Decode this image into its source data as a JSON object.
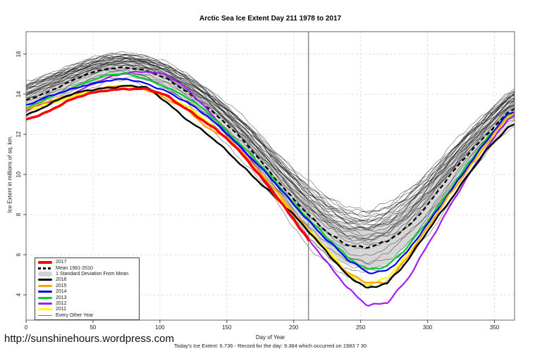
{
  "title": "Arctic Sea Ice Extent Day 211 1978 to 2017",
  "footer": {
    "url": "http://sunshinehours.wordpress.com",
    "status_line": "Today's Ice Extent: 6.736  - Record for the day: 9.364 which occurred on 1983 7 30"
  },
  "chart_data": {
    "type": "line",
    "title": "Arctic Sea Ice Extent Day 211 1978 to 2017",
    "xlabel": "Day of Year",
    "ylabel": "Ice Extent in millions of sq. km.",
    "xlim": [
      0,
      365
    ],
    "ylim": [
      2.74,
      17.12
    ],
    "xticks": [
      0,
      50,
      100,
      150,
      200,
      250,
      300,
      350
    ],
    "yticks": [
      4,
      6,
      8,
      10,
      12,
      14,
      16
    ],
    "grid": "dashed-lightgray",
    "marker_line": {
      "x": 211,
      "color": "#909090"
    },
    "control_days": [
      0,
      15,
      30,
      45,
      60,
      75,
      90,
      105,
      120,
      135,
      150,
      165,
      180,
      195,
      210,
      225,
      240,
      255,
      270,
      285,
      300,
      315,
      330,
      345,
      360,
      365
    ],
    "mean_1981_2010": {
      "name": "Mean 1981-2010",
      "color": "#000000",
      "style": "dashed",
      "values": [
        13.7,
        14.1,
        14.55,
        14.95,
        15.25,
        15.35,
        15.15,
        14.75,
        14.15,
        13.4,
        12.5,
        11.5,
        10.35,
        9.15,
        8.0,
        7.1,
        6.5,
        6.3,
        6.6,
        7.4,
        8.5,
        9.8,
        11.0,
        12.1,
        13.1,
        13.3
      ]
    },
    "std_dev_band": {
      "name": "1 Standard Deviation From Mean",
      "color": "#D6D6D6",
      "values": [
        0.45,
        0.45,
        0.42,
        0.4,
        0.38,
        0.38,
        0.4,
        0.42,
        0.45,
        0.48,
        0.52,
        0.58,
        0.65,
        0.75,
        0.85,
        0.92,
        0.98,
        1.0,
        1.0,
        0.95,
        0.85,
        0.72,
        0.62,
        0.55,
        0.5,
        0.5
      ]
    },
    "series": [
      {
        "name": "2017",
        "color": "#FF0000",
        "width": 3.5,
        "days": [
          0,
          15,
          30,
          45,
          60,
          75,
          90,
          105,
          120,
          135,
          150,
          165,
          180,
          195,
          210,
          211
        ],
        "values": [
          12.75,
          13.1,
          13.6,
          14.0,
          14.25,
          14.3,
          14.25,
          13.95,
          13.3,
          12.55,
          11.75,
          10.75,
          9.5,
          8.15,
          6.8,
          6.736
        ],
        "end_label": "6.736 at day 211"
      },
      {
        "name": "2016",
        "color": "#000000",
        "width": 2.4,
        "values": [
          13.0,
          13.45,
          13.9,
          14.2,
          14.35,
          14.4,
          14.3,
          13.6,
          12.75,
          12.0,
          11.15,
          10.25,
          9.3,
          8.3,
          7.3,
          6.2,
          4.95,
          4.25,
          4.6,
          5.7,
          7.1,
          8.5,
          10.0,
          11.3,
          12.3,
          12.5
        ]
      },
      {
        "name": "2015",
        "color": "#FFA500",
        "width": 2.2,
        "values": [
          13.3,
          13.6,
          13.85,
          14.15,
          14.35,
          14.4,
          14.2,
          13.8,
          13.3,
          12.3,
          11.9,
          10.9,
          9.7,
          8.45,
          7.3,
          6.1,
          5.0,
          4.55,
          4.65,
          5.9,
          7.3,
          8.9,
          10.3,
          11.6,
          12.9,
          13.05
        ]
      },
      {
        "name": "2014",
        "color": "#0000FF",
        "width": 2.2,
        "values": [
          13.45,
          13.8,
          14.15,
          14.5,
          14.7,
          14.75,
          14.55,
          14.2,
          13.6,
          12.9,
          12.05,
          11.05,
          9.95,
          8.85,
          7.8,
          6.75,
          5.75,
          5.15,
          5.3,
          6.15,
          7.5,
          9.0,
          10.4,
          11.7,
          13.0,
          13.1
        ]
      },
      {
        "name": "2013",
        "color": "#00CC33",
        "width": 2.2,
        "values": [
          13.3,
          13.75,
          14.2,
          14.65,
          14.95,
          15.0,
          14.75,
          14.35,
          13.8,
          13.1,
          12.2,
          11.2,
          10.1,
          9.0,
          7.95,
          6.85,
          5.85,
          5.3,
          5.45,
          6.3,
          7.6,
          9.1,
          10.5,
          11.8,
          13.0,
          13.1
        ]
      },
      {
        "name": "2012",
        "color": "#A020F0",
        "width": 2.2,
        "values": [
          13.2,
          13.55,
          13.9,
          14.35,
          14.75,
          15.05,
          15.15,
          15.0,
          14.25,
          13.3,
          12.2,
          11.0,
          9.6,
          8.2,
          6.9,
          5.5,
          4.3,
          3.5,
          3.6,
          4.7,
          6.5,
          8.3,
          9.9,
          11.4,
          12.8,
          13.0
        ]
      },
      {
        "name": "2011",
        "color": "#FFFF00",
        "width": 2.2,
        "values": [
          13.1,
          13.45,
          13.8,
          14.1,
          14.35,
          14.45,
          14.3,
          13.9,
          13.4,
          12.7,
          11.85,
          10.85,
          9.65,
          8.4,
          7.3,
          6.2,
          5.1,
          4.6,
          4.85,
          6.0,
          7.4,
          8.9,
          10.3,
          11.6,
          12.85,
          13.0
        ]
      }
    ],
    "other_years": {
      "label": "Every Other Year",
      "color": "#000000",
      "width": 0.6,
      "years": [
        {
          "year": 1978,
          "offset": 1.55
        },
        {
          "year": 1979,
          "offset": 1.85
        },
        {
          "year": 1980,
          "offset": 1.6
        },
        {
          "year": 1981,
          "offset": 1.45
        },
        {
          "year": 1982,
          "offset": 1.7
        },
        {
          "year": 1983,
          "offset": 1.5
        },
        {
          "year": 1984,
          "offset": 1.15
        },
        {
          "year": 1985,
          "offset": 1.3
        },
        {
          "year": 1986,
          "offset": 1.4
        },
        {
          "year": 1987,
          "offset": 1.35
        },
        {
          "year": 1988,
          "offset": 1.2
        },
        {
          "year": 1989,
          "offset": 0.95
        },
        {
          "year": 1990,
          "offset": 0.75
        },
        {
          "year": 1991,
          "offset": 0.85
        },
        {
          "year": 1992,
          "offset": 1.25
        },
        {
          "year": 1993,
          "offset": 1.0
        },
        {
          "year": 1994,
          "offset": 1.05
        },
        {
          "year": 1995,
          "offset": 0.45
        },
        {
          "year": 1996,
          "offset": 1.1
        },
        {
          "year": 1997,
          "offset": 0.8
        },
        {
          "year": 1998,
          "offset": 0.55
        },
        {
          "year": 1999,
          "offset": 0.35
        },
        {
          "year": 2000,
          "offset": 0.5
        },
        {
          "year": 2001,
          "offset": 0.6
        },
        {
          "year": 2002,
          "offset": 0.15
        },
        {
          "year": 2003,
          "offset": 0.3
        },
        {
          "year": 2004,
          "offset": 0.05
        },
        {
          "year": 2005,
          "offset": -0.35
        },
        {
          "year": 2006,
          "offset": -0.55
        },
        {
          "year": 2007,
          "offset": -1.7
        },
        {
          "year": 2008,
          "offset": -1.05
        },
        {
          "year": 2009,
          "offset": -0.75
        },
        {
          "year": 2010,
          "offset": -1.15
        }
      ]
    },
    "legend": {
      "position": "bottom-left-inside",
      "items": [
        {
          "label": "2017",
          "swatch": "line",
          "color": "#FF0000",
          "lw": 4
        },
        {
          "label": "Mean 1981-2010",
          "swatch": "dashed",
          "color": "#000000",
          "lw": 3
        },
        {
          "label": "1 Standard Deviation From Mean",
          "swatch": "band",
          "color": "#D3D3D3",
          "lw": 7
        },
        {
          "label": "2016",
          "swatch": "line",
          "color": "#000000",
          "lw": 3
        },
        {
          "label": "2015",
          "swatch": "line",
          "color": "#FFA500",
          "lw": 3
        },
        {
          "label": "2014",
          "swatch": "line",
          "color": "#0000FF",
          "lw": 3
        },
        {
          "label": "2013",
          "swatch": "line",
          "color": "#00CC33",
          "lw": 3
        },
        {
          "label": "2012",
          "swatch": "line",
          "color": "#A020F0",
          "lw": 3
        },
        {
          "label": "2011",
          "swatch": "line",
          "color": "#FFFF00",
          "lw": 3
        },
        {
          "label": "Every Other Year",
          "swatch": "line",
          "color": "#777777",
          "lw": 1
        }
      ]
    }
  }
}
